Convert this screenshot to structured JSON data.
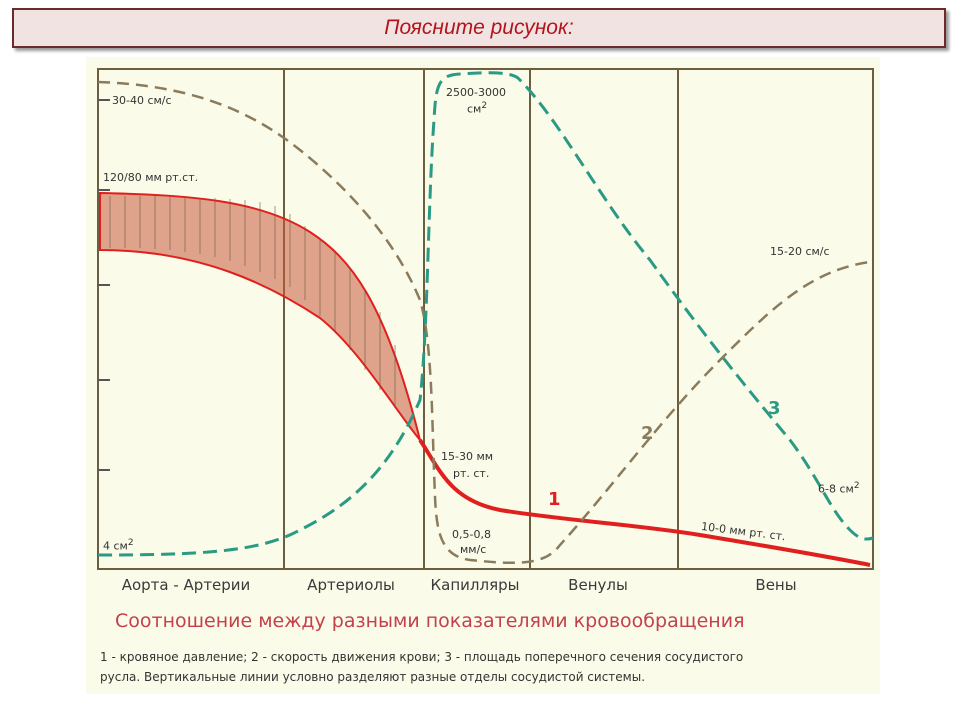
{
  "header": {
    "title": "Поясните рисунок:"
  },
  "diagram": {
    "sections": [
      "Аорта - Артерии",
      "Артериолы",
      "Капилляры",
      "Венулы",
      "Вены"
    ],
    "labels": {
      "speed_start": "30-40 см/с",
      "pressure_start": "120/80 мм рт.ст.",
      "area_start": "4 см",
      "area_start_sup": "2",
      "area_peak": "2500-3000",
      "area_peak_unit": "см",
      "area_peak_sup": "2",
      "speed_veins": "15-20 см/с",
      "pressure_cap_1": "15-30 мм",
      "pressure_cap_2": "рт. ст.",
      "speed_cap_1": "0,5-0,8",
      "speed_cap_2": "мм/с",
      "area_end": "6-8 см",
      "area_end_sup": "2",
      "pressure_end": "10-0 мм рт. ст."
    },
    "curve_numbers": {
      "pressure": "1",
      "speed": "2",
      "area": "3"
    },
    "colors": {
      "pressure": "#e0201e",
      "speed": "#8a7b5c",
      "area": "#2a9a84",
      "dividers": "#6b5f3f"
    },
    "caption": "Соотношение между разными показателями кровообращения",
    "legend_line1": "1 - кровяное давление; 2 - скорость движения крови; 3 - площадь поперечного сечения сосудистого",
    "legend_line2": "русла.    Вертикальные    линии    условно    разделяют    разные    отделы    сосудистой    системы."
  }
}
